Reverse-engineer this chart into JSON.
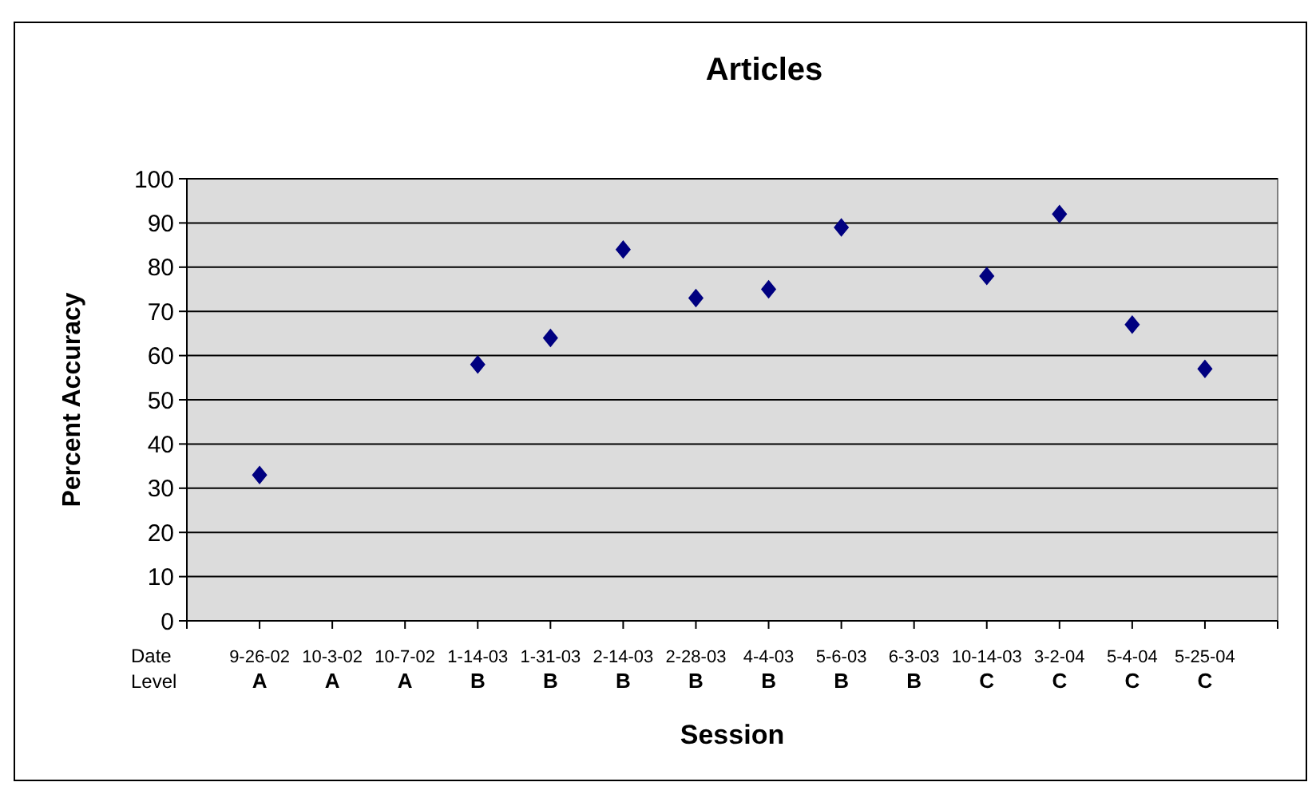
{
  "chart_data": {
    "type": "scatter",
    "title": "Articles",
    "xlabel": "Session",
    "ylabel": "Percent Accuracy",
    "categories": [
      "9-26-02\nA",
      "10-3-02\nA",
      "10-7-02\nA",
      "1-14-03\nB",
      "1-31-03\nB",
      "2-14-03\nB",
      "2-28-03\nB",
      "4-4-03\nB",
      "5-6-03\nB",
      "6-3-03\nB",
      "10-14-03\nC",
      "3-2-04\nC",
      "5-4-04\nC",
      "5-25-04\nC"
    ],
    "series": [
      {
        "color": "#000080",
        "values": [
          33,
          null,
          null,
          58,
          64,
          84,
          73,
          75,
          89,
          null,
          78,
          92,
          67,
          57
        ]
      }
    ],
    "ylim": [
      0,
      100
    ],
    "yticks": [
      0,
      10,
      20,
      30,
      40,
      50,
      60,
      70,
      80,
      90,
      100
    ],
    "grid": "y",
    "marker": "diamond",
    "annotations": [
      "Date",
      "Level"
    ]
  }
}
